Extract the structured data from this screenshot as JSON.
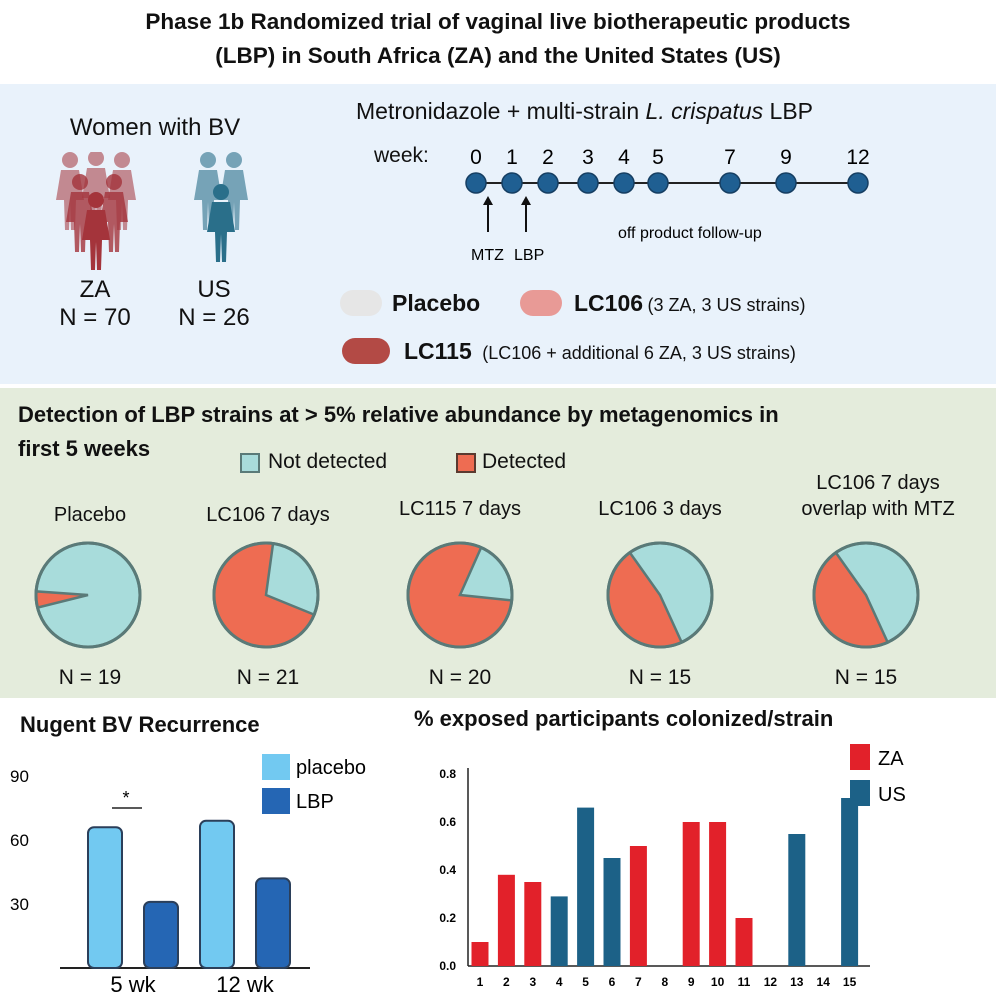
{
  "title": {
    "line1": "Phase 1b Randomized trial of vaginal live biotherapeutic products",
    "line2": "(LBP) in South Africa (ZA) and the United States (US)"
  },
  "cohort": {
    "heading": "Women with BV",
    "za_label": "ZA",
    "za_n": "N = 70",
    "us_label": "US",
    "us_n": "N = 26",
    "colors": {
      "za": "#a4343b",
      "us": "#2a6f8a"
    }
  },
  "regimen": {
    "heading_prefix": "Metronidazole + multi-strain ",
    "heading_italic": "L. crispatus",
    "heading_suffix": " LBP",
    "week_label": "week:",
    "weeks": [
      "0",
      "1",
      "2",
      "3",
      "4",
      "5",
      "7",
      "9",
      "12"
    ],
    "mtz_label": "MTZ",
    "lbp_label": "LBP",
    "followup_label": "off product follow-up"
  },
  "arms": {
    "placebo_label": "Placebo",
    "lc106_label": "LC106",
    "lc106_desc": "(3 ZA, 3 US strains)",
    "lc115_label": "LC115",
    "lc115_desc": "(LC106 + additional 6 ZA, 3 US strains)",
    "colors": {
      "placebo": "#e6e6e6",
      "lc106": "#e89a96",
      "lc115": "#b34a45"
    }
  },
  "detection": {
    "heading_line1": "Detection of LBP strains at > 5% relative abundance by metagenomics in",
    "heading_line2": "first 5 weeks",
    "legend_not_detected": "Not detected",
    "legend_detected": "Detected",
    "colors": {
      "not_detected": "#a8dcdb",
      "detected": "#ee6c52",
      "outline": "#5a7a78"
    },
    "pies": [
      {
        "label": "Placebo",
        "n": "N = 19",
        "detected_fraction": 0.05
      },
      {
        "label": "LC106 7 days",
        "n": "N = 21",
        "detected_fraction": 0.71
      },
      {
        "label": "LC115 7 days",
        "n": "N = 20",
        "detected_fraction": 0.8
      },
      {
        "label": "LC106 3 days",
        "n": "N = 15",
        "detected_fraction": 0.47
      },
      {
        "label_line1": "LC106 7 days",
        "label_line2": "overlap with MTZ",
        "n": "N = 15",
        "detected_fraction": 0.47
      }
    ]
  },
  "chart_data": [
    {
      "type": "bar",
      "title": "Nugent BV Recurrence",
      "categories": [
        "5 wk",
        "12 wk"
      ],
      "series": [
        {
          "name": "placebo",
          "values": [
            66,
            69
          ],
          "color": "#72c9f1"
        },
        {
          "name": "LBP",
          "values": [
            31,
            42
          ],
          "color": "#2566b4"
        }
      ],
      "yticks": [
        "30",
        "60",
        "90"
      ],
      "ylim": [
        0,
        90
      ],
      "annotation": "*"
    },
    {
      "type": "bar",
      "title": "% exposed participants colonized/strain",
      "categories": [
        "1",
        "2",
        "3",
        "4",
        "5",
        "6",
        "7",
        "8",
        "9",
        "10",
        "11",
        "12",
        "13",
        "14",
        "15"
      ],
      "values": [
        0.1,
        0.38,
        0.35,
        0.29,
        0.66,
        0.45,
        0.5,
        0,
        0.6,
        0.6,
        0.2,
        0,
        0.55,
        0,
        0.7
      ],
      "groups": [
        "ZA",
        "ZA",
        "ZA",
        "US",
        "US",
        "US",
        "ZA",
        "ZA",
        "ZA",
        "ZA",
        "ZA",
        "US",
        "US",
        "US",
        "US"
      ],
      "legend": [
        {
          "name": "ZA",
          "color": "#e2212a"
        },
        {
          "name": "US",
          "color": "#1c6187"
        }
      ],
      "yticks": [
        "0.0",
        "0.2",
        "0.4",
        "0.6",
        "0.8"
      ],
      "ylim": [
        0,
        0.8
      ]
    }
  ]
}
